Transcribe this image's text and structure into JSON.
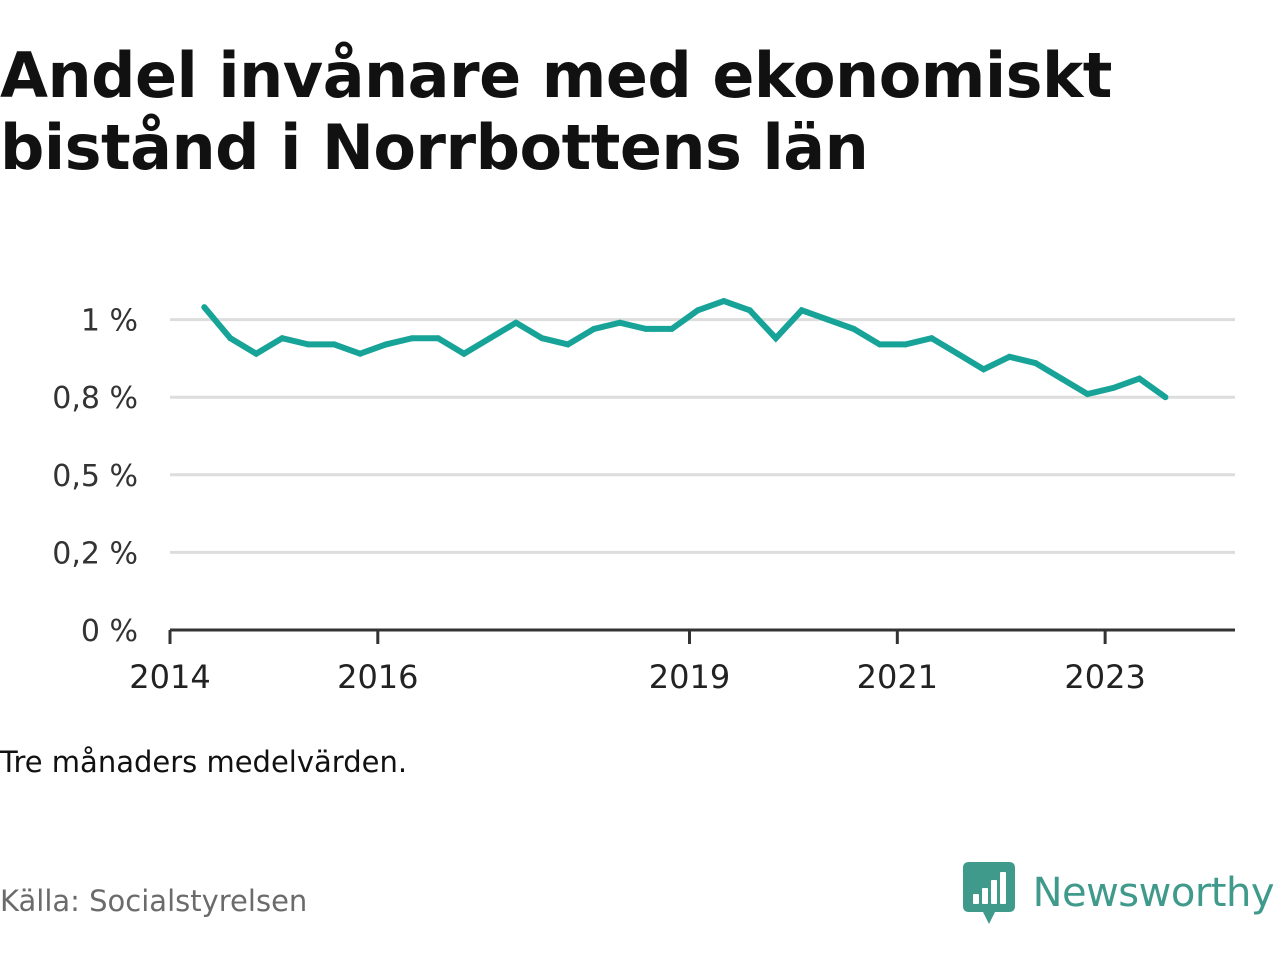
{
  "title": "Andel invånare med ekonomiskt bistånd i Norrbottens län",
  "note": "Tre månaders medelvärden.",
  "source": "Källa: Socialstyrelsen",
  "brand": "Newsworthy",
  "colors": {
    "line": "#17a398",
    "grid": "#dddddd",
    "axis": "#333333",
    "brand": "#3f9a8c"
  },
  "chart_data": {
    "type": "line",
    "title": "Andel invånare med ekonomiskt bistånd i Norrbottens län",
    "xlabel": "",
    "ylabel": "",
    "grid": true,
    "ylim": [
      0,
      1.25
    ],
    "xlim": [
      2014.0,
      2024.25
    ],
    "y_ticks": [
      {
        "value": 0,
        "label": "0 %"
      },
      {
        "value": 0.25,
        "label": "0,2 %"
      },
      {
        "value": 0.5,
        "label": "0,5 %"
      },
      {
        "value": 0.75,
        "label": "0,8 %"
      },
      {
        "value": 1.0,
        "label": "1 %"
      }
    ],
    "x_ticks": [
      {
        "value": 2014,
        "label": "2014"
      },
      {
        "value": 2016,
        "label": "2016"
      },
      {
        "value": 2019,
        "label": "2019"
      },
      {
        "value": 2021,
        "label": "2021"
      },
      {
        "value": 2023,
        "label": "2023"
      }
    ],
    "series": [
      {
        "values": [
          [
            2014.33,
            1.04
          ],
          [
            2014.58,
            0.94
          ],
          [
            2014.83,
            0.89
          ],
          [
            2015.08,
            0.94
          ],
          [
            2015.33,
            0.92
          ],
          [
            2015.58,
            0.92
          ],
          [
            2015.83,
            0.89
          ],
          [
            2016.08,
            0.92
          ],
          [
            2016.33,
            0.94
          ],
          [
            2016.58,
            0.94
          ],
          [
            2016.83,
            0.89
          ],
          [
            2017.08,
            0.94
          ],
          [
            2017.33,
            0.99
          ],
          [
            2017.58,
            0.94
          ],
          [
            2017.83,
            0.92
          ],
          [
            2018.08,
            0.97
          ],
          [
            2018.33,
            0.99
          ],
          [
            2018.58,
            0.97
          ],
          [
            2018.83,
            0.97
          ],
          [
            2019.08,
            1.03
          ],
          [
            2019.33,
            1.06
          ],
          [
            2019.58,
            1.03
          ],
          [
            2019.83,
            0.94
          ],
          [
            2020.08,
            1.03
          ],
          [
            2020.33,
            1.0
          ],
          [
            2020.58,
            0.97
          ],
          [
            2020.83,
            0.92
          ],
          [
            2021.08,
            0.92
          ],
          [
            2021.33,
            0.94
          ],
          [
            2021.58,
            0.89
          ],
          [
            2021.83,
            0.84
          ],
          [
            2022.08,
            0.88
          ],
          [
            2022.33,
            0.86
          ],
          [
            2022.58,
            0.81
          ],
          [
            2022.83,
            0.76
          ],
          [
            2023.08,
            0.78
          ],
          [
            2023.33,
            0.81
          ],
          [
            2023.58,
            0.75
          ]
        ]
      }
    ]
  }
}
